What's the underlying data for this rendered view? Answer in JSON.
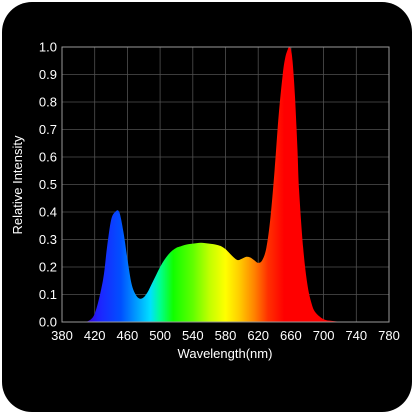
{
  "chart_data": {
    "type": "area",
    "xlabel": "Wavelength(nm)",
    "ylabel": "Relative Intensity",
    "xlim": [
      380,
      780
    ],
    "ylim": [
      0,
      1.0
    ],
    "x_ticks": [
      "380",
      "420",
      "460",
      "500",
      "540",
      "580",
      "620",
      "660",
      "700",
      "740",
      "780"
    ],
    "y_ticks": [
      "0.0",
      "0.1",
      "0.2",
      "0.3",
      "0.4",
      "0.5",
      "0.6",
      "0.7",
      "0.8",
      "0.9",
      "1.0"
    ],
    "grid": true,
    "fill": "spectral (wavelength-colored)",
    "x": [
      410,
      420,
      430,
      435,
      440,
      445,
      450,
      455,
      460,
      465,
      470,
      475,
      480,
      485,
      490,
      495,
      500,
      505,
      510,
      515,
      520,
      525,
      530,
      535,
      540,
      545,
      550,
      555,
      560,
      565,
      570,
      575,
      580,
      585,
      590,
      595,
      600,
      605,
      610,
      615,
      620,
      625,
      630,
      635,
      640,
      645,
      650,
      653,
      656,
      658,
      660,
      662,
      665,
      668,
      670,
      675,
      680,
      685,
      690,
      700,
      710,
      720,
      730
    ],
    "values": [
      0.0,
      0.03,
      0.15,
      0.27,
      0.37,
      0.4,
      0.4,
      0.33,
      0.23,
      0.14,
      0.1,
      0.085,
      0.09,
      0.11,
      0.14,
      0.17,
      0.2,
      0.225,
      0.245,
      0.26,
      0.27,
      0.275,
      0.28,
      0.283,
      0.285,
      0.287,
      0.288,
      0.287,
      0.285,
      0.283,
      0.28,
      0.275,
      0.265,
      0.25,
      0.235,
      0.225,
      0.23,
      0.237,
      0.235,
      0.225,
      0.215,
      0.225,
      0.27,
      0.38,
      0.55,
      0.75,
      0.9,
      0.96,
      0.99,
      1.0,
      0.99,
      0.95,
      0.82,
      0.63,
      0.48,
      0.27,
      0.14,
      0.07,
      0.035,
      0.01,
      0.004,
      0.001,
      0.0
    ]
  }
}
